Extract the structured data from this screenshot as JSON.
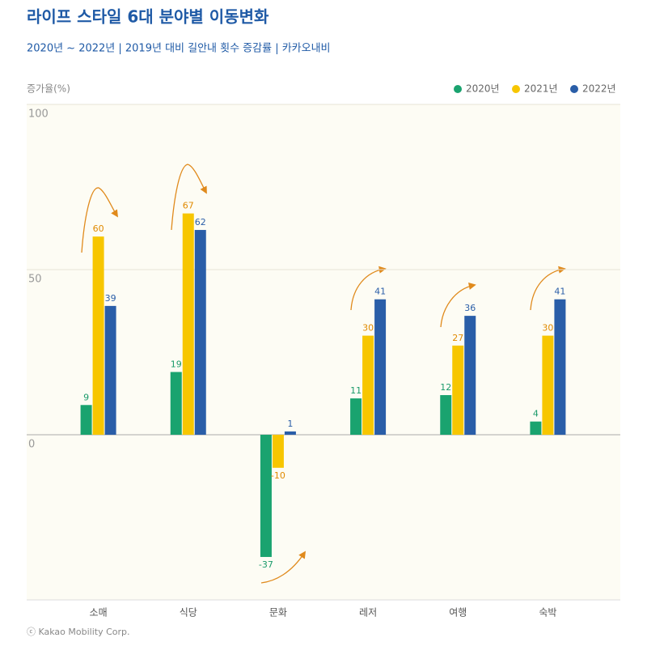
{
  "chart_data": {
    "type": "bar",
    "title": "라이프 스타일 6대 분야별 이동변화",
    "subtitle": "2020년 ~ 2022년 | 2019년 대비 길안내 횟수 증감률 | 카카오내비",
    "y_label": "증가율(%)",
    "footer": "ⓒ Kakao Mobility Corp.",
    "categories": [
      "소매",
      "식당",
      "문화",
      "레저",
      "여행",
      "숙박"
    ],
    "series": [
      {
        "name": "2020년",
        "color": "#1aa36f",
        "values": [
          9,
          19,
          -37,
          11,
          12,
          4
        ]
      },
      {
        "name": "2021년",
        "color": "#f7c600",
        "values": [
          60,
          67,
          -10,
          30,
          27,
          30
        ]
      },
      {
        "name": "2022년",
        "color": "#2a5ea8",
        "values": [
          39,
          62,
          1,
          41,
          36,
          41
        ]
      }
    ],
    "ylim": [
      -50,
      100
    ],
    "yticks": [
      0,
      50,
      100
    ],
    "grid": true,
    "legend": "top-right"
  }
}
